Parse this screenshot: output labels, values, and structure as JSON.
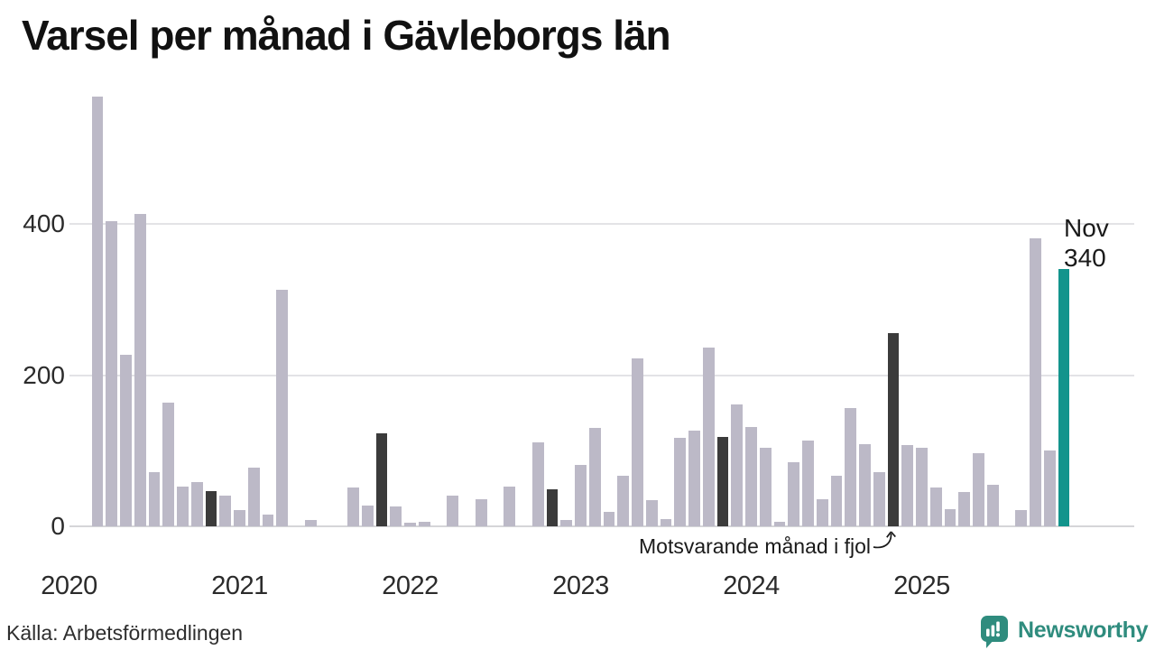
{
  "title": "Varsel per månad i Gävleborgs län",
  "colors": {
    "bar": "#bcb9c7",
    "bar_fjol": "#3b3b3b",
    "bar_current": "#12948c",
    "grid": "#e3e3e6",
    "axis_line": "#d5d5d8",
    "text": "#1a1a1a",
    "logo_teal": "#2f8c7e"
  },
  "chart_data": {
    "type": "bar",
    "title": "Varsel per månad i Gävleborgs län",
    "xlabel": "",
    "ylabel": "",
    "ylim": [
      0,
      580
    ],
    "yticks": [
      0,
      200,
      400
    ],
    "grid": true,
    "legend": "none",
    "x_years": [
      "2020",
      "2021",
      "2022",
      "2023",
      "2024",
      "2025"
    ],
    "annotation": "Motsvarande månad i fjol",
    "annotation_target": "2024-11",
    "highlight_label": {
      "line1": "Nov",
      "line2": "340"
    },
    "months": [
      {
        "m": "2020-03",
        "v": 568,
        "role": "normal"
      },
      {
        "m": "2020-04",
        "v": 403,
        "role": "normal"
      },
      {
        "m": "2020-05",
        "v": 227,
        "role": "normal"
      },
      {
        "m": "2020-06",
        "v": 413,
        "role": "normal"
      },
      {
        "m": "2020-07",
        "v": 72,
        "role": "normal"
      },
      {
        "m": "2020-08",
        "v": 163,
        "role": "normal"
      },
      {
        "m": "2020-09",
        "v": 53,
        "role": "normal"
      },
      {
        "m": "2020-10",
        "v": 58,
        "role": "normal"
      },
      {
        "m": "2020-11",
        "v": 46,
        "role": "fjol"
      },
      {
        "m": "2020-12",
        "v": 41,
        "role": "normal"
      },
      {
        "m": "2021-01",
        "v": 21,
        "role": "normal"
      },
      {
        "m": "2021-02",
        "v": 78,
        "role": "normal"
      },
      {
        "m": "2021-03",
        "v": 16,
        "role": "normal"
      },
      {
        "m": "2021-04",
        "v": 313,
        "role": "normal"
      },
      {
        "m": "2021-05",
        "v": 0,
        "role": "normal"
      },
      {
        "m": "2021-06",
        "v": 8,
        "role": "normal"
      },
      {
        "m": "2021-07",
        "v": 0,
        "role": "normal"
      },
      {
        "m": "2021-08",
        "v": 0,
        "role": "normal"
      },
      {
        "m": "2021-09",
        "v": 51,
        "role": "normal"
      },
      {
        "m": "2021-10",
        "v": 28,
        "role": "normal"
      },
      {
        "m": "2021-11",
        "v": 123,
        "role": "fjol"
      },
      {
        "m": "2021-12",
        "v": 26,
        "role": "normal"
      },
      {
        "m": "2022-01",
        "v": 5,
        "role": "normal"
      },
      {
        "m": "2022-02",
        "v": 6,
        "role": "normal"
      },
      {
        "m": "2022-03",
        "v": 0,
        "role": "normal"
      },
      {
        "m": "2022-04",
        "v": 41,
        "role": "normal"
      },
      {
        "m": "2022-05",
        "v": 0,
        "role": "normal"
      },
      {
        "m": "2022-06",
        "v": 36,
        "role": "normal"
      },
      {
        "m": "2022-07",
        "v": 0,
        "role": "normal"
      },
      {
        "m": "2022-08",
        "v": 53,
        "role": "normal"
      },
      {
        "m": "2022-09",
        "v": 0,
        "role": "normal"
      },
      {
        "m": "2022-10",
        "v": 111,
        "role": "normal"
      },
      {
        "m": "2022-11",
        "v": 49,
        "role": "fjol"
      },
      {
        "m": "2022-12",
        "v": 8,
        "role": "normal"
      },
      {
        "m": "2023-01",
        "v": 81,
        "role": "normal"
      },
      {
        "m": "2023-02",
        "v": 130,
        "role": "normal"
      },
      {
        "m": "2023-03",
        "v": 19,
        "role": "normal"
      },
      {
        "m": "2023-04",
        "v": 67,
        "role": "normal"
      },
      {
        "m": "2023-05",
        "v": 222,
        "role": "normal"
      },
      {
        "m": "2023-06",
        "v": 35,
        "role": "normal"
      },
      {
        "m": "2023-07",
        "v": 9,
        "role": "normal"
      },
      {
        "m": "2023-08",
        "v": 117,
        "role": "normal"
      },
      {
        "m": "2023-09",
        "v": 127,
        "role": "normal"
      },
      {
        "m": "2023-10",
        "v": 236,
        "role": "normal"
      },
      {
        "m": "2023-11",
        "v": 118,
        "role": "fjol"
      },
      {
        "m": "2023-12",
        "v": 161,
        "role": "normal"
      },
      {
        "m": "2024-01",
        "v": 131,
        "role": "normal"
      },
      {
        "m": "2024-02",
        "v": 104,
        "role": "normal"
      },
      {
        "m": "2024-03",
        "v": 6,
        "role": "normal"
      },
      {
        "m": "2024-04",
        "v": 85,
        "role": "normal"
      },
      {
        "m": "2024-05",
        "v": 113,
        "role": "normal"
      },
      {
        "m": "2024-06",
        "v": 36,
        "role": "normal"
      },
      {
        "m": "2024-07",
        "v": 67,
        "role": "normal"
      },
      {
        "m": "2024-08",
        "v": 157,
        "role": "normal"
      },
      {
        "m": "2024-09",
        "v": 109,
        "role": "normal"
      },
      {
        "m": "2024-10",
        "v": 72,
        "role": "normal"
      },
      {
        "m": "2024-11",
        "v": 255,
        "role": "fjol"
      },
      {
        "m": "2024-12",
        "v": 107,
        "role": "normal"
      },
      {
        "m": "2025-01",
        "v": 104,
        "role": "normal"
      },
      {
        "m": "2025-02",
        "v": 51,
        "role": "normal"
      },
      {
        "m": "2025-03",
        "v": 23,
        "role": "normal"
      },
      {
        "m": "2025-04",
        "v": 45,
        "role": "normal"
      },
      {
        "m": "2025-05",
        "v": 97,
        "role": "normal"
      },
      {
        "m": "2025-06",
        "v": 55,
        "role": "normal"
      },
      {
        "m": "2025-07",
        "v": 0,
        "role": "normal"
      },
      {
        "m": "2025-08",
        "v": 22,
        "role": "normal"
      },
      {
        "m": "2025-09",
        "v": 381,
        "role": "normal"
      },
      {
        "m": "2025-10",
        "v": 100,
        "role": "normal"
      },
      {
        "m": "2025-11",
        "v": 340,
        "role": "current"
      }
    ]
  },
  "footer": {
    "source": "Källa: Arbetsförmedlingen",
    "brand": "Newsworthy"
  }
}
